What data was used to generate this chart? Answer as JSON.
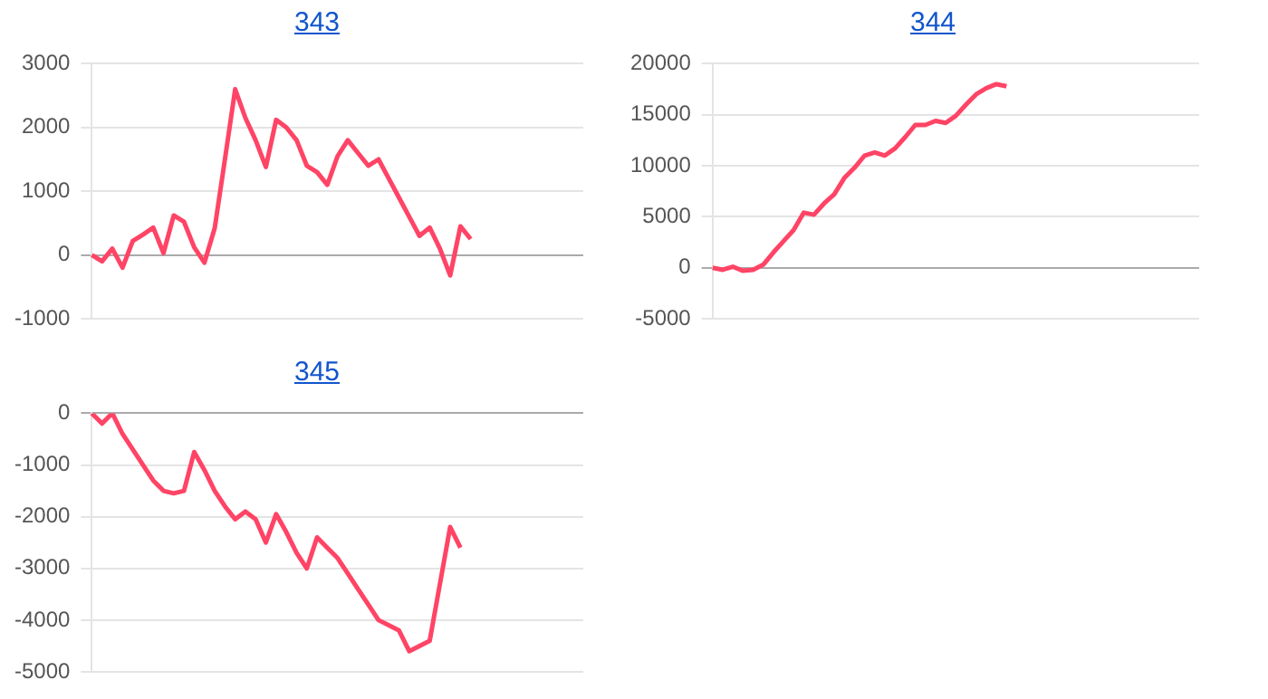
{
  "chart_data": [
    {
      "type": "line",
      "title": "343",
      "categories": [
        null,
        null,
        null,
        null,
        null,
        null,
        null,
        null,
        null,
        null,
        null,
        null,
        null,
        null,
        null,
        null,
        null,
        null,
        null,
        null,
        null,
        null,
        null,
        null,
        null,
        null,
        null,
        null,
        null,
        null,
        null,
        null,
        null,
        null,
        null,
        null,
        null,
        null,
        null,
        null,
        null,
        null,
        null,
        null,
        null,
        null,
        null,
        null,
        null
      ],
      "series": [
        {
          "color": "#ff4466",
          "values": [
            0,
            -100,
            100,
            -200,
            220,
            320,
            430,
            30,
            620,
            520,
            120,
            -120,
            420,
            1500,
            2600,
            2150,
            1800,
            1380,
            2120,
            2000,
            1800,
            1400,
            1300,
            1100,
            1550,
            1800,
            1600,
            1400,
            1500,
            1200,
            900,
            600,
            300,
            430,
            100,
            -320,
            450,
            250,
            null,
            null,
            null,
            null,
            null,
            null,
            null,
            null,
            null,
            null,
            null
          ]
        }
      ],
      "ylim": [
        -1000,
        3000
      ],
      "yticks": [
        -1000,
        0,
        1000,
        2000,
        3000
      ],
      "grid": "y",
      "tick_labels": "y",
      "legend": false,
      "marker": "none"
    },
    {
      "type": "line",
      "title": "344",
      "categories": [
        null,
        null,
        null,
        null,
        null,
        null,
        null,
        null,
        null,
        null,
        null,
        null,
        null,
        null,
        null,
        null,
        null,
        null,
        null,
        null,
        null,
        null,
        null,
        null,
        null,
        null,
        null,
        null,
        null,
        null,
        null,
        null,
        null,
        null,
        null,
        null,
        null,
        null,
        null,
        null,
        null,
        null,
        null,
        null,
        null,
        null,
        null,
        null,
        null
      ],
      "series": [
        {
          "color": "#ff4466",
          "values": [
            0,
            -200,
            100,
            -300,
            -200,
            300,
            1500,
            2600,
            3700,
            5400,
            5200,
            6300,
            7200,
            8800,
            9800,
            11000,
            11300,
            11000,
            11700,
            12800,
            14000,
            14000,
            14400,
            14200,
            14900,
            16000,
            17000,
            17600,
            18000,
            17800,
            null,
            null,
            null,
            null,
            null,
            null,
            null,
            null,
            null,
            null,
            null,
            null,
            null,
            null,
            null,
            null,
            null,
            null,
            null
          ]
        }
      ],
      "ylim": [
        -5000,
        20000
      ],
      "yticks": [
        -5000,
        0,
        5000,
        10000,
        15000,
        20000
      ],
      "grid": "y",
      "tick_labels": "y",
      "legend": false,
      "marker": "none"
    },
    {
      "type": "line",
      "title": "345",
      "categories": [
        null,
        null,
        null,
        null,
        null,
        null,
        null,
        null,
        null,
        null,
        null,
        null,
        null,
        null,
        null,
        null,
        null,
        null,
        null,
        null,
        null,
        null,
        null,
        null,
        null,
        null,
        null,
        null,
        null,
        null,
        null,
        null,
        null,
        null,
        null,
        null,
        null,
        null,
        null,
        null,
        null,
        null,
        null,
        null,
        null,
        null,
        null,
        null,
        null
      ],
      "series": [
        {
          "color": "#ff4466",
          "values": [
            0,
            -200,
            0,
            -400,
            -700,
            -1000,
            -1300,
            -1500,
            -1550,
            -1500,
            -750,
            -1100,
            -1500,
            -1800,
            -2050,
            -1900,
            -2050,
            -2500,
            -1950,
            -2300,
            -2700,
            -3000,
            -2400,
            -2600,
            -2800,
            -3100,
            -3400,
            -3700,
            -4000,
            -4100,
            -4200,
            -4600,
            -4500,
            -4400,
            -3300,
            -2200,
            -2600,
            null,
            null,
            null,
            null,
            null,
            null,
            null,
            null,
            null,
            null,
            null,
            null
          ]
        }
      ],
      "ylim": [
        -5000,
        0
      ],
      "yticks": [
        -5000,
        -4000,
        -3000,
        -2000,
        -1000,
        0
      ],
      "grid": "y",
      "tick_labels": "y",
      "legend": false,
      "marker": "none"
    }
  ]
}
